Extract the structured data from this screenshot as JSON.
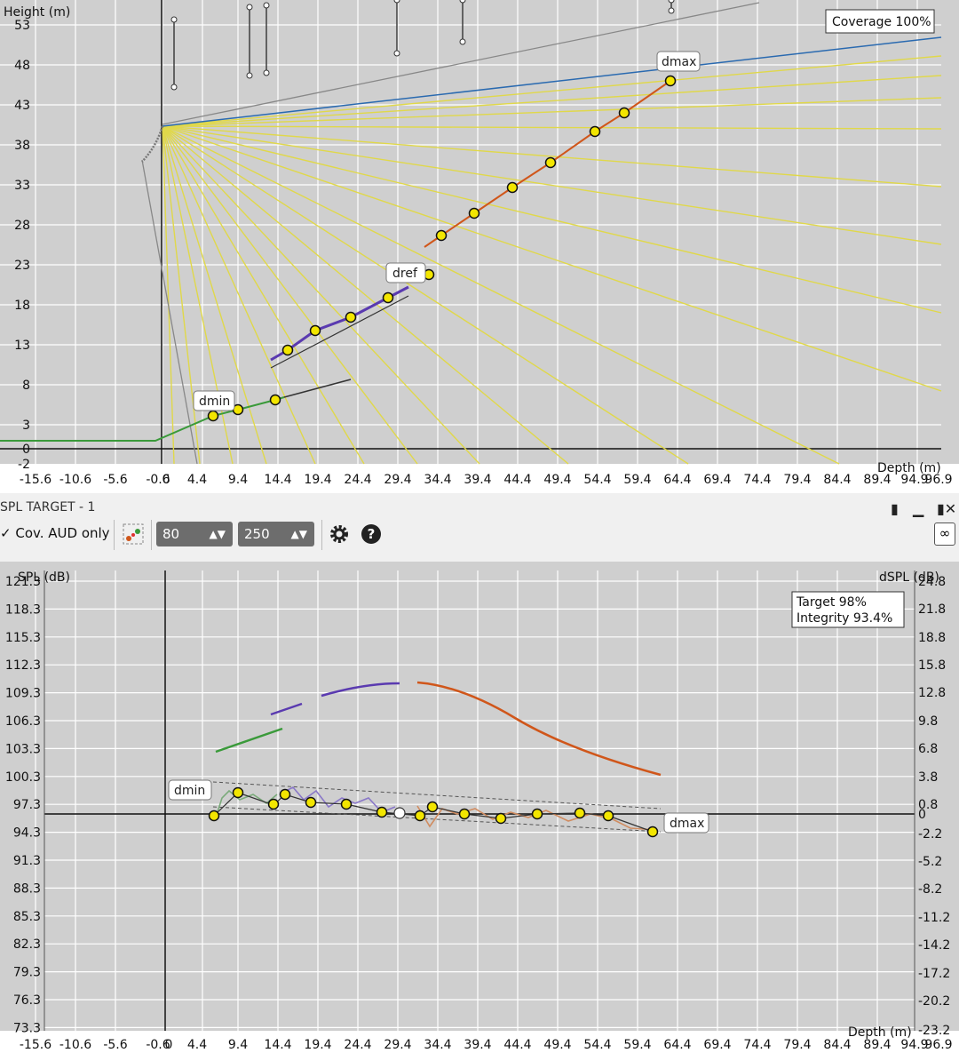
{
  "plot1": {
    "ylabel": "Height (m)",
    "xlabel": "Depth (m)",
    "badge": "Coverage 100%",
    "yticks": [
      "53",
      "48",
      "43",
      "38",
      "33",
      "28",
      "23",
      "18",
      "13",
      "8",
      "3",
      "0",
      "-2"
    ],
    "xticks": [
      "-15.6",
      "-10.6",
      "-5.6",
      "-0.6",
      "0",
      "4.4",
      "9.4",
      "14.4",
      "19.4",
      "24.4",
      "29.4",
      "34.4",
      "39.4",
      "44.4",
      "49.4",
      "54.4",
      "59.4",
      "64.4",
      "69.4",
      "74.4",
      "79.4",
      "84.4",
      "89.4",
      "94.9",
      "96.9"
    ],
    "markers": {
      "dmin": "dmin",
      "dref": "dref",
      "dmax": "dmax"
    }
  },
  "toolbar": {
    "title": "SPL TARGET - 1",
    "checkbox_label": "Cov. AUD only",
    "spin1_value": "80",
    "spin2_value": "250",
    "gear_icon": "gear-icon",
    "help_icon": "help-icon",
    "link_icon": "link-icon"
  },
  "plot2": {
    "ylabel_left": "SPL (dB)",
    "ylabel_right": "dSPL (dB)",
    "xlabel": "Depth (m)",
    "badge_line1": "Target 98%",
    "badge_line2": "Integrity 93.4%",
    "yticks_left": [
      "121.3",
      "118.3",
      "115.3",
      "112.3",
      "109.3",
      "106.3",
      "103.3",
      "100.3",
      "97.3",
      "94.3",
      "91.3",
      "88.3",
      "85.3",
      "82.3",
      "79.3",
      "76.3",
      "73.3"
    ],
    "yticks_right": [
      "24.8",
      "21.8",
      "18.8",
      "15.8",
      "12.8",
      "9.8",
      "6.8",
      "3.8",
      "0.8",
      "0",
      "-2.2",
      "-5.2",
      "-8.2",
      "-11.2",
      "-14.2",
      "-17.2",
      "-20.2",
      "-23.2"
    ],
    "xticks": [
      "-15.6",
      "-10.6",
      "-5.6",
      "-0.6",
      "0",
      "4.4",
      "9.4",
      "14.4",
      "19.4",
      "24.4",
      "29.4",
      "34.4",
      "39.4",
      "44.4",
      "49.4",
      "54.4",
      "59.4",
      "64.4",
      "69.4",
      "74.4",
      "79.4",
      "84.4",
      "89.4",
      "94.9",
      "96.9"
    ],
    "markers": {
      "dmin": "dmin",
      "dmax": "dmax"
    }
  },
  "colors": {
    "plot_bg": "#cfcfcf",
    "grid": "#ffffff",
    "yellow_rays": "#e0d84a",
    "green": "#3a9a3a",
    "purple": "#5a3ab0",
    "orange": "#d0561a",
    "blue": "#2a6ab0",
    "point_fill": "#f3e600"
  }
}
